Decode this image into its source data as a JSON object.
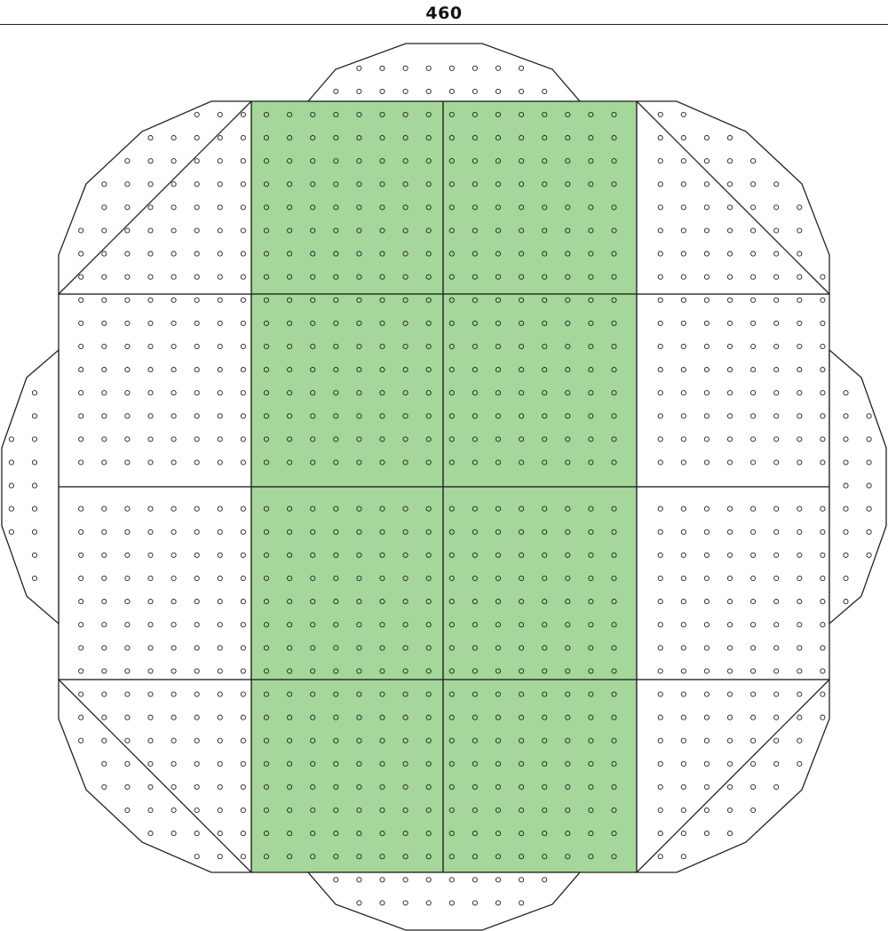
{
  "header": {
    "title": "460"
  },
  "layout": {
    "green_panels": 8,
    "white_panels": 8,
    "edge_pieces": [
      "top-cap",
      "bottom-cap",
      "left-cap",
      "right-cap",
      "corner-top-left",
      "corner-top-right",
      "corner-bottom-left",
      "corner-bottom-right"
    ]
  },
  "colors": {
    "green": "#a5d69a",
    "line": "#222222",
    "background": "#ffffff"
  }
}
